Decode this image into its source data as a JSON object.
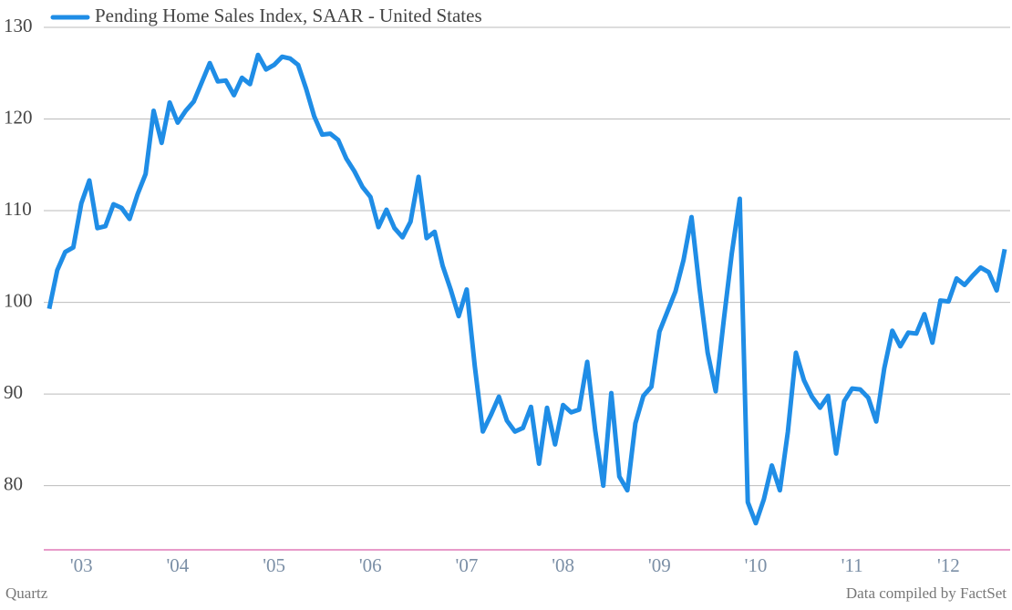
{
  "chart_data": {
    "type": "line",
    "legend_position": "top-left",
    "credit": "Quartz",
    "source": "Data compiled by FactSet",
    "categories": [
      null,
      null,
      null,
      null,
      "'03",
      null,
      null,
      null,
      null,
      null,
      null,
      null,
      null,
      null,
      null,
      null,
      "'04",
      null,
      null,
      null,
      null,
      null,
      null,
      null,
      null,
      null,
      null,
      null,
      "'05",
      null,
      null,
      null,
      null,
      null,
      null,
      null,
      null,
      null,
      null,
      null,
      "'06",
      null,
      null,
      null,
      null,
      null,
      null,
      null,
      null,
      null,
      null,
      null,
      "'07",
      null,
      null,
      null,
      null,
      null,
      null,
      null,
      null,
      null,
      null,
      null,
      "'08",
      null,
      null,
      null,
      null,
      null,
      null,
      null,
      null,
      null,
      null,
      null,
      "'09",
      null,
      null,
      null,
      null,
      null,
      null,
      null,
      null,
      null,
      null,
      null,
      "'10",
      null,
      null,
      null,
      null,
      null,
      null,
      null,
      null,
      null,
      null,
      null,
      "'11",
      null,
      null,
      null,
      null,
      null,
      null,
      null,
      null,
      null,
      null,
      null,
      "'12",
      null,
      null,
      null,
      null,
      null,
      null,
      null
    ],
    "series": [
      {
        "name": "Pending Home Sales Index, SAAR - United States",
        "color": "#1f8de6",
        "values": [
          99.3,
          103.5,
          105.5,
          106,
          110.8,
          113.3,
          108.1,
          108.3,
          110.7,
          110.3,
          109.1,
          111.8,
          114,
          120.9,
          117.4,
          121.8,
          119.6,
          120.9,
          121.9,
          124,
          126.1,
          124.1,
          124.2,
          122.6,
          124.5,
          123.8,
          127,
          125.4,
          125.9,
          126.8,
          126.6,
          125.9,
          123.3,
          120.3,
          118.3,
          118.4,
          117.7,
          115.7,
          114.3,
          112.6,
          111.5,
          108.2,
          110.1,
          108.1,
          107.1,
          108.8,
          113.7,
          107,
          107.7,
          104,
          101.4,
          98.5,
          101.4,
          93,
          85.9,
          87.7,
          89.7,
          87.1,
          85.9,
          86.3,
          88.6,
          82.4,
          88.5,
          84.5,
          88.8,
          88,
          88.3,
          93.5,
          86,
          80,
          90.1,
          81,
          79.5,
          86.8,
          89.8,
          90.8,
          96.8,
          99,
          101.2,
          104.6,
          109.3,
          101.5,
          94.5,
          90.3,
          98,
          105.3,
          111.3,
          78.2,
          75.9,
          78.5,
          82.2,
          79.5,
          85.9,
          94.5,
          91.5,
          89.7,
          88.5,
          89.8,
          83.5,
          89.2,
          90.6,
          90.5,
          89.6,
          87,
          92.8,
          96.9,
          95.2,
          96.7,
          96.6,
          98.7,
          95.6,
          100.2,
          100.1,
          102.6,
          101.9,
          102.9,
          103.8,
          103.3,
          101.3,
          105.8
        ]
      }
    ],
    "ylim": [
      73,
      130
    ],
    "yticks": [
      80,
      90,
      100,
      110,
      120,
      130
    ],
    "grid": true
  }
}
